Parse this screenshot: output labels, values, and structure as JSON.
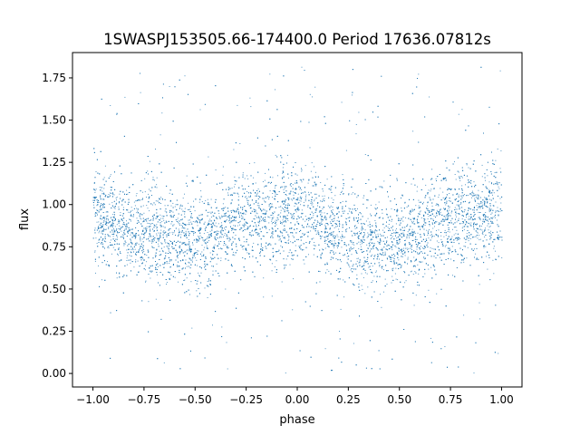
{
  "chart_data": {
    "type": "scatter",
    "title": "1SWASPJ153505.66-174400.0 Period 17636.07812s",
    "xlabel": "phase",
    "ylabel": "flux",
    "xlim": [
      -1.1,
      1.1
    ],
    "ylim": [
      -0.08,
      1.9
    ],
    "xticks": [
      -1.0,
      -0.75,
      -0.5,
      -0.25,
      0.0,
      0.25,
      0.5,
      0.75,
      1.0
    ],
    "xtick_labels": [
      "−1.00",
      "−0.75",
      "−0.50",
      "−0.25",
      "0.00",
      "0.25",
      "0.50",
      "0.75",
      "1.00"
    ],
    "yticks": [
      0.0,
      0.25,
      0.5,
      0.75,
      1.0,
      1.25,
      1.5,
      1.75
    ],
    "ytick_labels": [
      "0.00",
      "0.25",
      "0.50",
      "0.75",
      "1.00",
      "1.25",
      "1.50",
      "1.75"
    ],
    "grid": false,
    "point_color": "#1f77b4",
    "x_range": [
      -1.0,
      1.0
    ],
    "trend": {
      "phase": [
        -1.0,
        -0.75,
        -0.5,
        -0.25,
        0.0,
        0.25,
        0.5,
        0.75,
        1.0
      ],
      "flux": [
        0.92,
        0.84,
        0.78,
        0.92,
        0.95,
        0.82,
        0.78,
        0.92,
        0.93
      ]
    },
    "scatter_sigma": 0.14,
    "outlier_range": [
      0.0,
      1.82
    ]
  }
}
